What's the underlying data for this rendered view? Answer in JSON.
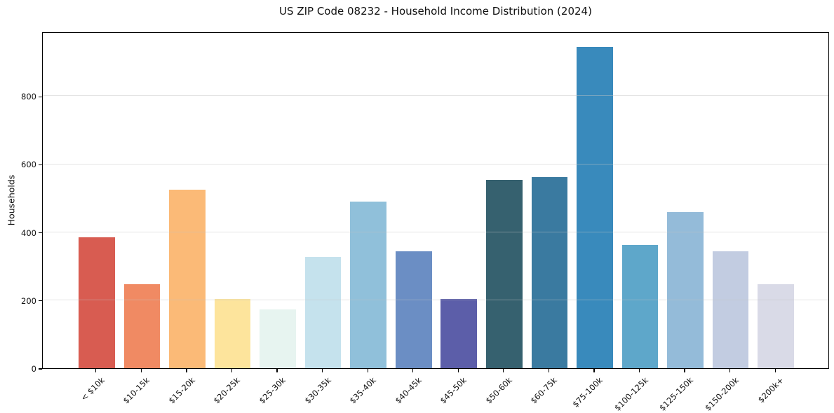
{
  "chart_data": {
    "type": "bar",
    "title": "US ZIP Code 08232 - Household Income Distribution (2024)",
    "xlabel": "",
    "ylabel": "Households",
    "categories": [
      "< $10k",
      "$10-15k",
      "$15-20k",
      "$20-25k",
      "$25-30k",
      "$30-35k",
      "$35-40k",
      "$40-45k",
      "$45-50k",
      "$50-60k",
      "$60-75k",
      "$75-100k",
      "$100-125k",
      "$125-150k",
      "$150-200k",
      "$200k+"
    ],
    "values": [
      384,
      246,
      525,
      203,
      172,
      328,
      489,
      343,
      204,
      553,
      562,
      945,
      363,
      458,
      344,
      248
    ],
    "bar_colors": [
      "#d85c51",
      "#f08a63",
      "#fbba77",
      "#fde49c",
      "#e7f4f0",
      "#c5e2ed",
      "#90c0da",
      "#6b8ec4",
      "#5c5ea9",
      "#36616f",
      "#3a7aa0",
      "#398abc",
      "#5ea7ca",
      "#94bbd9",
      "#c2cce1",
      "#d9dae7"
    ],
    "ylim": [
      0,
      990
    ],
    "yticks": [
      0,
      200,
      400,
      600,
      800
    ],
    "grid": "horizontal-over-bars",
    "legend": "none",
    "axis_color": "#000000",
    "grid_color": "#e3e3e3",
    "text_color": "#111111",
    "background_color": "#ffffff"
  }
}
